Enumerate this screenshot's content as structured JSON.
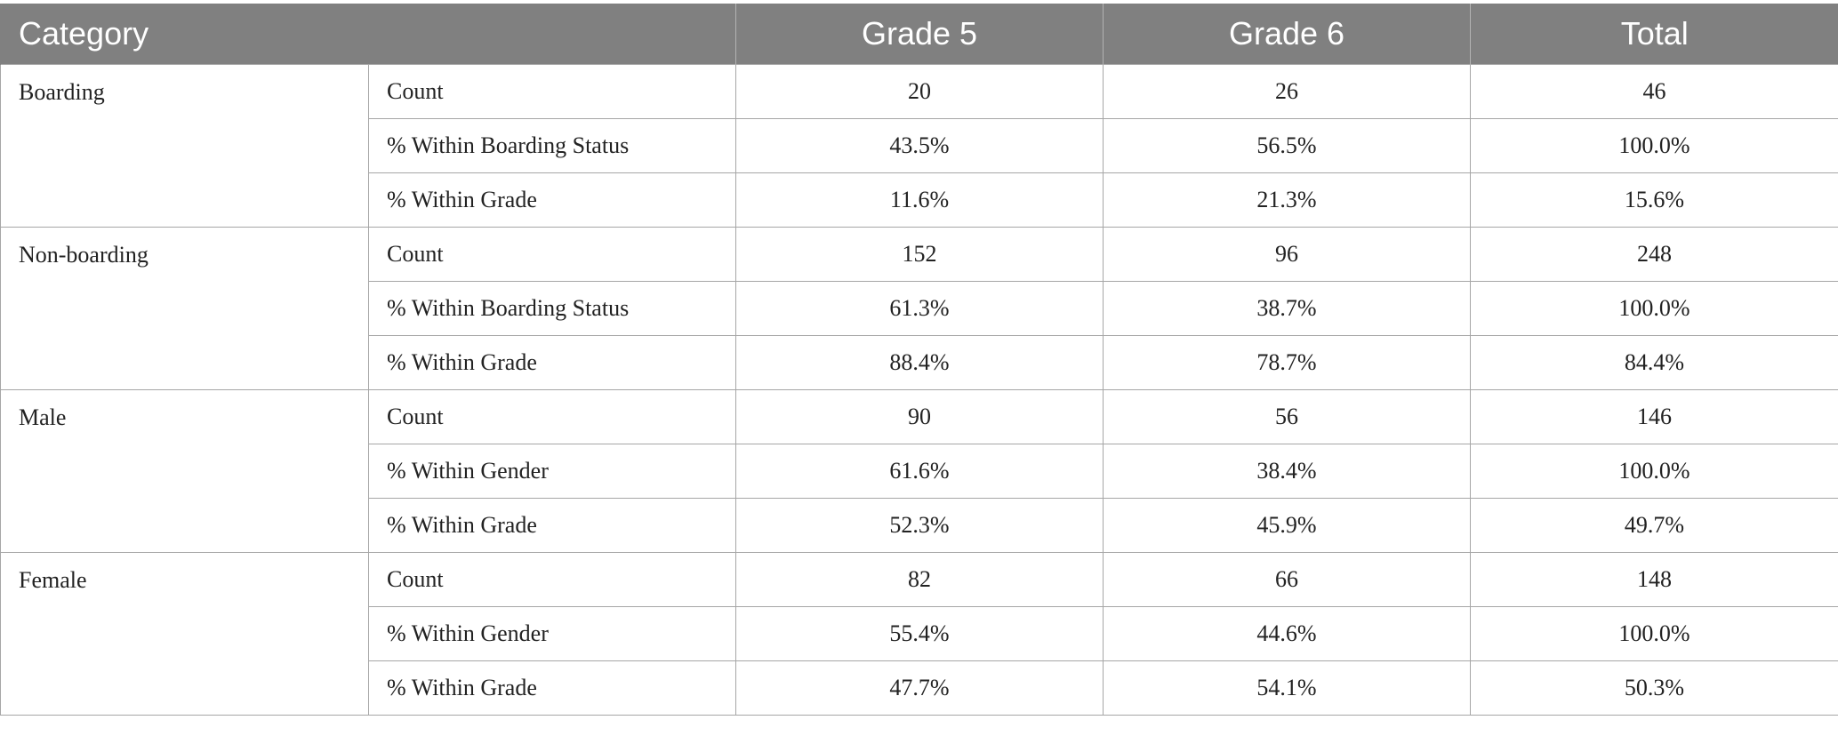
{
  "header": {
    "category": "Category",
    "grade5": "Grade 5",
    "grade6": "Grade 6",
    "total": "Total"
  },
  "groups": [
    {
      "name": "Boarding",
      "rows": [
        {
          "label": "Count",
          "grade5": "20",
          "grade6": "26",
          "total": "46"
        },
        {
          "label": "% Within Boarding Status",
          "grade5": "43.5%",
          "grade6": "56.5%",
          "total": "100.0%"
        },
        {
          "label": "% Within Grade",
          "grade5": "11.6%",
          "grade6": "21.3%",
          "total": "15.6%"
        }
      ]
    },
    {
      "name": "Non-boarding",
      "rows": [
        {
          "label": "Count",
          "grade5": "152",
          "grade6": "96",
          "total": "248"
        },
        {
          "label": "% Within Boarding Status",
          "grade5": "61.3%",
          "grade6": "38.7%",
          "total": "100.0%"
        },
        {
          "label": "% Within Grade",
          "grade5": "88.4%",
          "grade6": "78.7%",
          "total": "84.4%"
        }
      ]
    },
    {
      "name": "Male",
      "rows": [
        {
          "label": "Count",
          "grade5": "90",
          "grade6": "56",
          "total": "146"
        },
        {
          "label": "% Within Gender",
          "grade5": "61.6%",
          "grade6": "38.4%",
          "total": "100.0%"
        },
        {
          "label": "% Within Grade",
          "grade5": "52.3%",
          "grade6": "45.9%",
          "total": "49.7%"
        }
      ]
    },
    {
      "name": "Female",
      "rows": [
        {
          "label": "Count",
          "grade5": "82",
          "grade6": "66",
          "total": "148"
        },
        {
          "label": "% Within Gender",
          "grade5": "55.4%",
          "grade6": "44.6%",
          "total": "100.0%"
        },
        {
          "label": "% Within Grade",
          "grade5": "47.7%",
          "grade6": "54.1%",
          "total": "50.3%"
        }
      ]
    }
  ]
}
